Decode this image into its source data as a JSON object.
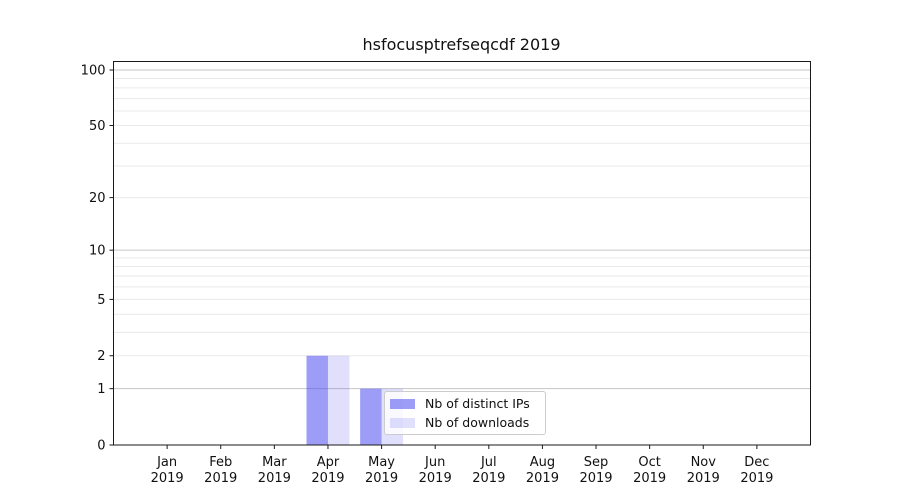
{
  "chart_data": {
    "type": "bar",
    "title": "hsfocusptrefseqcdf 2019",
    "x_year": "2019",
    "categories": [
      "Jan",
      "Feb",
      "Mar",
      "Apr",
      "May",
      "Jun",
      "Jul",
      "Aug",
      "Sep",
      "Oct",
      "Nov",
      "Dec"
    ],
    "series": [
      {
        "name": "Nb of distinct IPs",
        "color": "rgba(70,70,240,0.53)",
        "values": [
          0,
          0,
          0,
          2,
          1,
          0,
          0,
          0,
          0,
          0,
          0,
          0
        ]
      },
      {
        "name": "Nb of downloads",
        "color": "rgba(70,70,240,0.17)",
        "values": [
          0,
          0,
          0,
          2,
          1,
          0,
          0,
          0,
          0,
          0,
          0,
          0
        ]
      }
    ],
    "yscale": "log1p",
    "ylim": [
      0,
      110
    ],
    "xlabel": "",
    "ylabel": "",
    "yticks": [
      0,
      1,
      2,
      5,
      10,
      20,
      50,
      100
    ],
    "major_gridlines": [
      1,
      10,
      100
    ],
    "minor_gridlines": [
      2,
      3,
      4,
      5,
      6,
      7,
      8,
      9,
      20,
      30,
      40,
      50,
      60,
      70,
      80,
      90
    ],
    "grid": true,
    "legend_position": "lower-center",
    "colors": {
      "axis": "#1a1a1a",
      "text": "#111111",
      "major_grid": "#c6c6c6",
      "minor_grid": "#eaeaea",
      "legend_border": "#cccccc"
    }
  }
}
